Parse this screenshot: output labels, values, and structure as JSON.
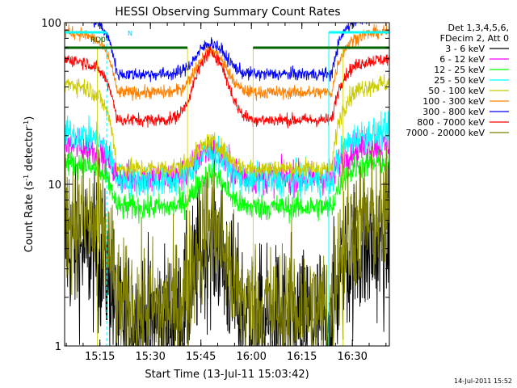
{
  "chart_data": {
    "type": "line",
    "title": "HESSI Observing Summary Count Rates",
    "xlabel": "Start Time (13-Jul-11 15:03:42)",
    "ylabel_main": "Count Rate (s",
    "ylabel_sup": "-1",
    "ylabel_tail": " detector",
    "ylabel_sup2": "-1",
    "ylabel_end": ")",
    "timestamp": "14-Jul-2011 15:52",
    "y_scale": "log",
    "ylim": [
      1,
      100
    ],
    "xlim": [
      "15:04:30",
      "16:41:00"
    ],
    "x_ticks": [
      "15:15",
      "15:30",
      "15:45",
      "16:00",
      "16:15",
      "16:30"
    ],
    "y_ticks": [
      "1",
      "10",
      "100"
    ],
    "legend_header": [
      "Det 1,3,4,5,6,",
      "FDecim 2, Att 0"
    ],
    "legend_position": "right",
    "annotations": {
      "rd0": "RD0",
      "n": "N"
    },
    "series": [
      {
        "name": "3 - 6 keV",
        "color": "#000000"
      },
      {
        "name": "6 - 12 keV",
        "color": "#ff00ff"
      },
      {
        "name": "12 - 25 keV",
        "color": "#00ff00"
      },
      {
        "name": "25 - 50 keV",
        "color": "#00ffff"
      },
      {
        "name": "50 - 100 keV",
        "color": "#cccc00"
      },
      {
        "name": "100 - 300 keV",
        "color": "#ff8000"
      },
      {
        "name": "300 - 800 keV",
        "color": "#0000ff"
      },
      {
        "name": "800 - 7000 keV",
        "color": "#ff0000"
      },
      {
        "name": "7000 - 20000 keV",
        "color": "#808000"
      }
    ],
    "segments": [
      {
        "start": "15:04:30",
        "end": "15:14:15"
      },
      {
        "start": "15:14:15",
        "end": "15:41:00"
      },
      {
        "start": "15:41:00",
        "end": "16:00:30"
      },
      {
        "start": "16:00:30",
        "end": "16:27:15"
      },
      {
        "start": "16:27:15",
        "end": "16:41:00"
      }
    ],
    "saa_flag": [
      {
        "start": "15:04:30",
        "end": "15:17:00"
      },
      {
        "start": "16:23:00",
        "end": "16:41:00"
      }
    ],
    "rd0_flag": [
      {
        "start": "15:04:30",
        "end": "15:41:00",
        "level": 70
      },
      {
        "start": "16:00:30",
        "end": "16:41:00",
        "level": 70
      }
    ]
  }
}
